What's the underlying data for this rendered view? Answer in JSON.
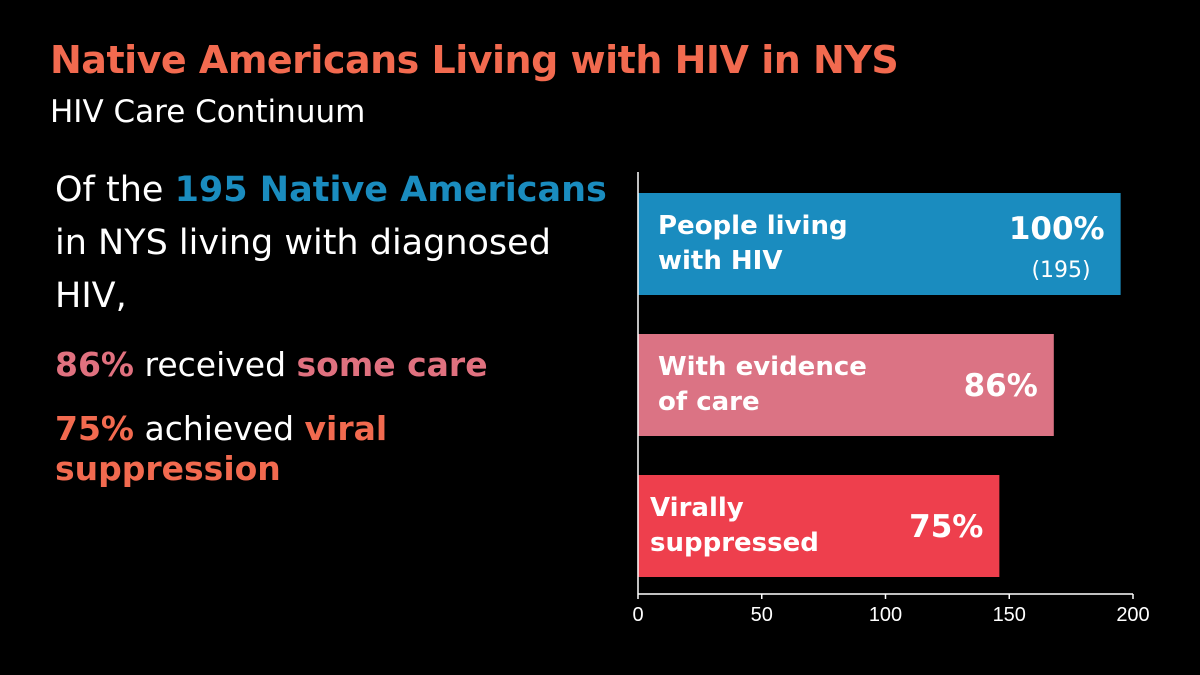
{
  "header": {
    "title": "Native Americans Living with HIV in NYS",
    "subtitle": "HIV Care Continuum"
  },
  "summary": {
    "intro_prefix": "Of the ",
    "intro_highlight": "195 Native Americans",
    "intro_suffix": " in NYS living with diagnosed HIV,",
    "care_pct": "86%",
    "care_mid": " received ",
    "care_highlight": "some care",
    "supp_pct": "75%",
    "supp_mid": " achieved ",
    "supp_highlight": "viral suppression"
  },
  "colors": {
    "title": "#f26a4f",
    "blue": "#1a8cbf",
    "pink": "#e0717f",
    "orange": "#f26a4f",
    "bar_people": "#1a8cbf",
    "bar_care": "#db7384",
    "bar_suppressed": "#ee3f4d"
  },
  "chart_data": {
    "type": "bar",
    "orientation": "horizontal",
    "categories": [
      "People living with HIV",
      "With evidence of care",
      "Virally suppressed"
    ],
    "category_lines": [
      [
        "People living",
        "with HIV"
      ],
      [
        "With evidence",
        "of care"
      ],
      [
        "Virally",
        "suppressed"
      ]
    ],
    "values": [
      195,
      168,
      146
    ],
    "value_labels": [
      "100%",
      "86%",
      "75%"
    ],
    "value_sublabels": [
      "(195)",
      "",
      ""
    ],
    "xlim": [
      0,
      200
    ],
    "xticks": [
      0,
      50,
      100,
      150,
      200
    ],
    "grid": false,
    "legend": "none"
  }
}
